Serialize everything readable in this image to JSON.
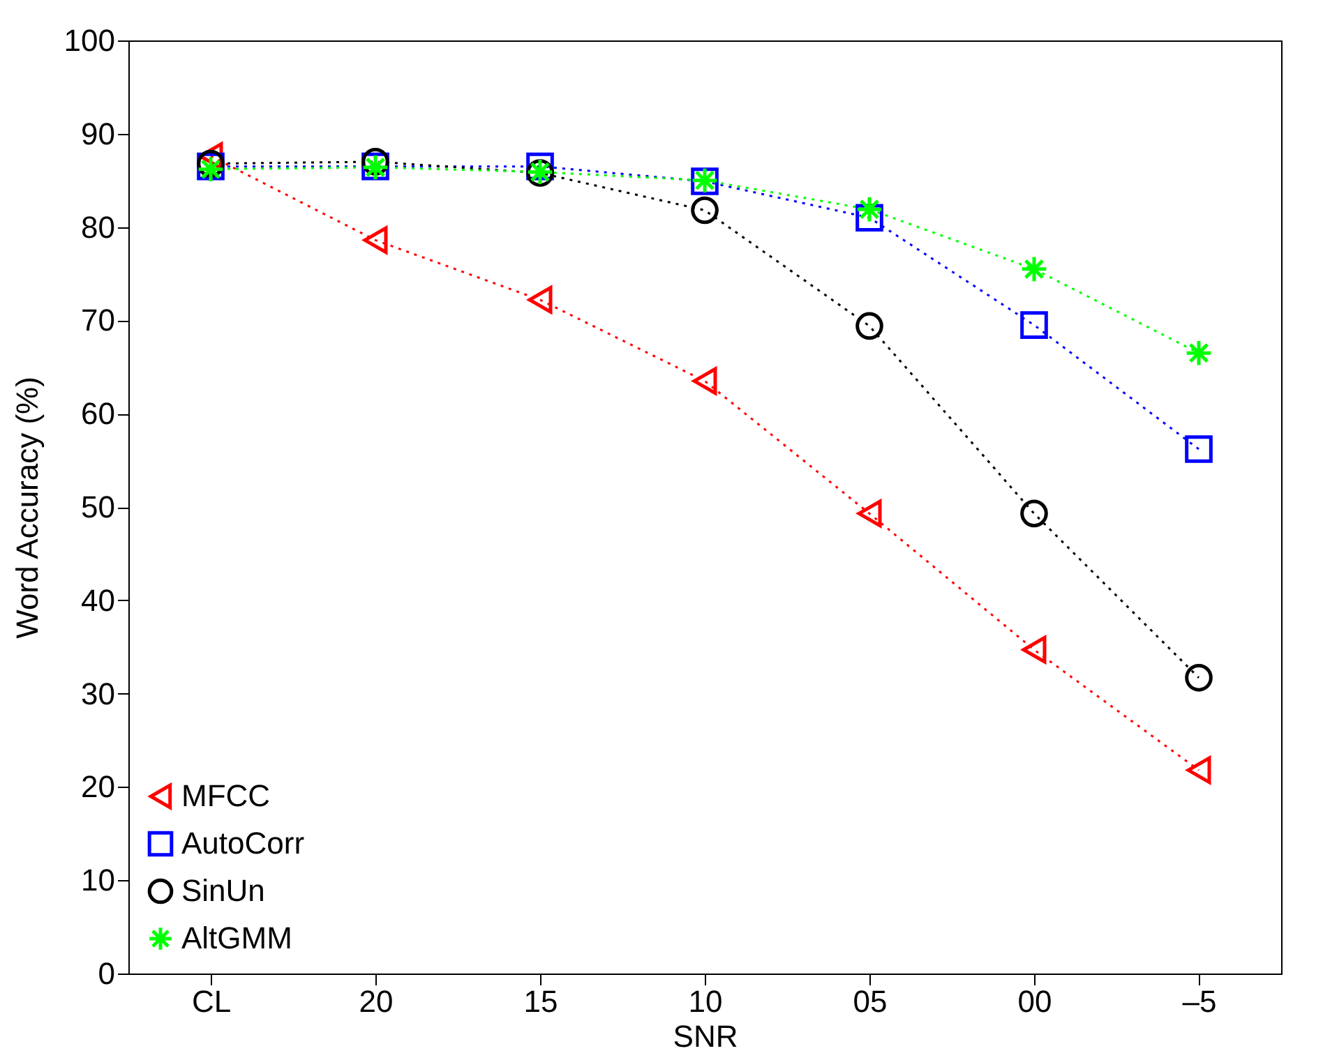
{
  "chart_data": {
    "type": "line",
    "xlabel": "SNR",
    "ylabel": "Word Accuracy (%)",
    "categories": [
      "CL",
      "20",
      "15",
      "10",
      "05",
      "00",
      "–5"
    ],
    "ylim": [
      0,
      100
    ],
    "yticks": [
      0,
      10,
      20,
      30,
      40,
      50,
      60,
      70,
      80,
      90,
      100
    ],
    "grid": false,
    "legend": "bottom left",
    "line_style": "dotted",
    "series": [
      {
        "name": "MFCC",
        "color": "#ff0000",
        "marker": "triangle",
        "values": [
          87.6,
          78.6,
          72.2,
          63.5,
          49.3,
          34.7,
          21.8
        ]
      },
      {
        "name": "AutoCorr",
        "color": "#0000ff",
        "marker": "square",
        "values": [
          86.5,
          86.5,
          86.5,
          84.9,
          81.0,
          69.5,
          56.2
        ]
      },
      {
        "name": "SinUn",
        "color": "#000000",
        "marker": "circle",
        "values": [
          86.8,
          87.0,
          85.8,
          81.8,
          69.4,
          49.3,
          31.7
        ]
      },
      {
        "name": "AltGMM",
        "color": "#00ff00",
        "marker": "cross",
        "values": [
          86.2,
          86.4,
          85.9,
          85.0,
          81.9,
          75.5,
          66.5
        ]
      }
    ]
  }
}
